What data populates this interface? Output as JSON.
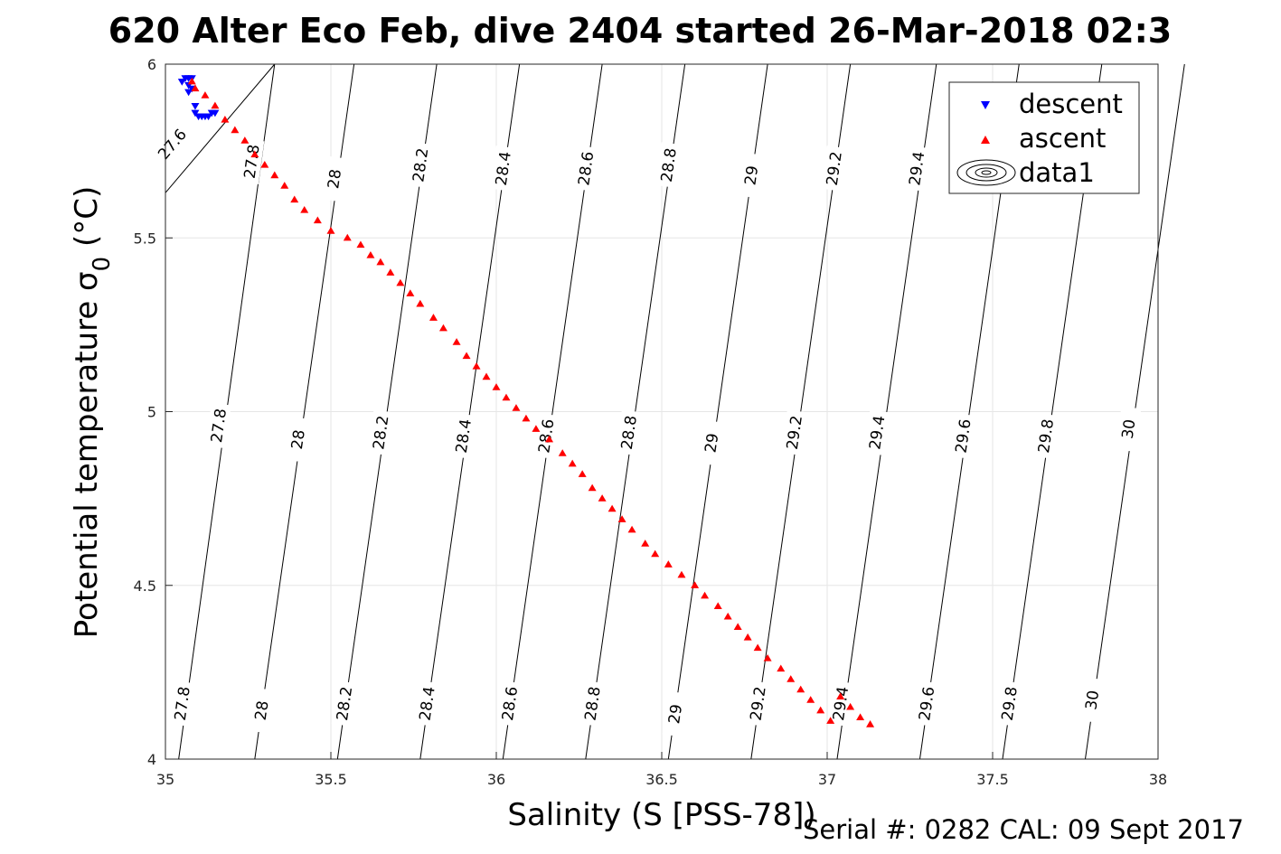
{
  "chart_data": {
    "type": "scatter",
    "title": "620 Alter Eco Feb, dive 2404 started 26-Mar-2018 02:3",
    "xlabel": "Salinity (S [PSS-78])",
    "ylabel_main": "Potential temperature ",
    "ylabel_symbol": "σ",
    "ylabel_sub": "0",
    "ylabel_unit": " (°C)",
    "footer": "Serial #: 0282  CAL: 09 Sept 2017",
    "xlim": [
      35,
      38
    ],
    "ylim": [
      4,
      6
    ],
    "x_ticks": [
      "35",
      "35.5",
      "36",
      "36.5",
      "37",
      "37.5",
      "38"
    ],
    "y_ticks": [
      "4",
      "4.5",
      "5",
      "5.5",
      "6"
    ],
    "grid": true,
    "legend_position": "top-right",
    "legend": [
      "descent",
      "ascent",
      "data1"
    ],
    "series": [
      {
        "name": "descent",
        "marker": "triangle-down",
        "color": "#0000ff",
        "points": [
          [
            35.05,
            5.95
          ],
          [
            35.06,
            5.96
          ],
          [
            35.07,
            5.96
          ],
          [
            35.08,
            5.96
          ],
          [
            35.07,
            5.94
          ],
          [
            35.08,
            5.93
          ],
          [
            35.07,
            5.92
          ],
          [
            35.09,
            5.88
          ],
          [
            35.09,
            5.86
          ],
          [
            35.1,
            5.85
          ],
          [
            35.11,
            5.85
          ],
          [
            35.12,
            5.85
          ],
          [
            35.13,
            5.85
          ],
          [
            35.14,
            5.86
          ],
          [
            35.15,
            5.86
          ]
        ]
      },
      {
        "name": "ascent",
        "marker": "triangle-up",
        "color": "#ff0000",
        "points": [
          [
            35.08,
            5.95
          ],
          [
            35.09,
            5.93
          ],
          [
            35.12,
            5.91
          ],
          [
            35.15,
            5.88
          ],
          [
            35.18,
            5.84
          ],
          [
            35.21,
            5.81
          ],
          [
            35.24,
            5.78
          ],
          [
            35.27,
            5.74
          ],
          [
            35.3,
            5.71
          ],
          [
            35.33,
            5.68
          ],
          [
            35.36,
            5.65
          ],
          [
            35.39,
            5.61
          ],
          [
            35.42,
            5.58
          ],
          [
            35.46,
            5.55
          ],
          [
            35.5,
            5.52
          ],
          [
            35.55,
            5.5
          ],
          [
            35.59,
            5.48
          ],
          [
            35.62,
            5.45
          ],
          [
            35.65,
            5.43
          ],
          [
            35.68,
            5.4
          ],
          [
            35.71,
            5.37
          ],
          [
            35.74,
            5.34
          ],
          [
            35.77,
            5.31
          ],
          [
            35.81,
            5.27
          ],
          [
            35.84,
            5.24
          ],
          [
            35.88,
            5.2
          ],
          [
            35.91,
            5.16
          ],
          [
            35.94,
            5.13
          ],
          [
            35.97,
            5.1
          ],
          [
            36.0,
            5.07
          ],
          [
            36.03,
            5.04
          ],
          [
            36.06,
            5.01
          ],
          [
            36.09,
            4.98
          ],
          [
            36.12,
            4.95
          ],
          [
            36.16,
            4.92
          ],
          [
            36.2,
            4.88
          ],
          [
            36.23,
            4.85
          ],
          [
            36.26,
            4.82
          ],
          [
            36.29,
            4.78
          ],
          [
            36.32,
            4.75
          ],
          [
            36.35,
            4.72
          ],
          [
            36.38,
            4.69
          ],
          [
            36.41,
            4.66
          ],
          [
            36.45,
            4.62
          ],
          [
            36.48,
            4.59
          ],
          [
            36.52,
            4.56
          ],
          [
            36.56,
            4.53
          ],
          [
            36.6,
            4.5
          ],
          [
            36.63,
            4.47
          ],
          [
            36.67,
            4.44
          ],
          [
            36.7,
            4.41
          ],
          [
            36.73,
            4.38
          ],
          [
            36.76,
            4.35
          ],
          [
            36.79,
            4.32
          ],
          [
            36.82,
            4.29
          ],
          [
            36.86,
            4.26
          ],
          [
            36.89,
            4.23
          ],
          [
            36.92,
            4.2
          ],
          [
            36.95,
            4.17
          ],
          [
            36.98,
            4.14
          ],
          [
            37.01,
            4.11
          ],
          [
            37.04,
            4.18
          ],
          [
            37.07,
            4.15
          ],
          [
            37.1,
            4.12
          ],
          [
            37.13,
            4.1
          ]
        ]
      }
    ],
    "contours": [
      {
        "label": "27.6",
        "s0": 35.0,
        "s1": 35.33,
        "y0": 5.63,
        "y1": 6.0,
        "labels_at": [
          [
            35.02,
            5.77
          ]
        ]
      },
      {
        "label": "27.8",
        "s0": 35.04,
        "s1": 35.33,
        "y0": 4.0,
        "y1": 6.0,
        "labels_at": [
          [
            35.05,
            4.16
          ],
          [
            35.16,
            4.96
          ],
          [
            35.26,
            5.72
          ]
        ]
      },
      {
        "label": "28",
        "s0": 35.27,
        "s1": 35.57,
        "y0": 4.0,
        "y1": 6.0,
        "labels_at": [
          [
            35.29,
            4.14
          ],
          [
            35.4,
            4.92
          ],
          [
            35.51,
            5.67
          ]
        ]
      },
      {
        "label": "28.2",
        "s0": 35.52,
        "s1": 35.82,
        "y0": 4.0,
        "y1": 6.0,
        "labels_at": [
          [
            35.54,
            4.16
          ],
          [
            35.65,
            4.94
          ],
          [
            35.77,
            5.71
          ]
        ]
      },
      {
        "label": "28.4",
        "s0": 35.77,
        "s1": 36.07,
        "y0": 4.0,
        "y1": 6.0,
        "labels_at": [
          [
            35.79,
            4.16
          ],
          [
            35.9,
            4.93
          ],
          [
            36.02,
            5.7
          ]
        ]
      },
      {
        "label": "28.6",
        "s0": 36.02,
        "s1": 36.32,
        "y0": 4.0,
        "y1": 6.0,
        "labels_at": [
          [
            36.04,
            4.16
          ],
          [
            36.15,
            4.93
          ],
          [
            36.27,
            5.7
          ]
        ]
      },
      {
        "label": "28.8",
        "s0": 36.27,
        "s1": 36.57,
        "y0": 4.0,
        "y1": 6.0,
        "labels_at": [
          [
            36.29,
            4.16
          ],
          [
            36.4,
            4.94
          ],
          [
            36.52,
            5.71
          ]
        ]
      },
      {
        "label": "29",
        "s0": 36.52,
        "s1": 36.82,
        "y0": 4.0,
        "y1": 6.0,
        "labels_at": [
          [
            36.54,
            4.13
          ],
          [
            36.65,
            4.91
          ],
          [
            36.77,
            5.68
          ]
        ]
      },
      {
        "label": "29.2",
        "s0": 36.77,
        "s1": 37.07,
        "y0": 4.0,
        "y1": 6.0,
        "labels_at": [
          [
            36.79,
            4.16
          ],
          [
            36.9,
            4.94
          ],
          [
            37.02,
            5.7
          ]
        ]
      },
      {
        "label": "29.4",
        "s0": 37.03,
        "s1": 37.33,
        "y0": 4.0,
        "y1": 6.0,
        "labels_at": [
          [
            37.04,
            4.16
          ],
          [
            37.15,
            4.94
          ],
          [
            37.27,
            5.7
          ]
        ]
      },
      {
        "label": "29.6",
        "s0": 37.28,
        "s1": 37.58,
        "y0": 4.0,
        "y1": 6.0,
        "labels_at": [
          [
            37.3,
            4.16
          ],
          [
            37.41,
            4.93
          ]
        ]
      },
      {
        "label": "29.8",
        "s0": 37.53,
        "s1": 37.83,
        "y0": 4.0,
        "y1": 6.0,
        "labels_at": [
          [
            37.55,
            4.16
          ],
          [
            37.66,
            4.93
          ]
        ]
      },
      {
        "label": "30",
        "s0": 37.78,
        "s1": 38.08,
        "y0": 4.0,
        "y1": 6.0,
        "labels_at": [
          [
            37.8,
            4.17
          ],
          [
            37.91,
            4.95
          ]
        ]
      }
    ]
  },
  "colors": {
    "axis": "#262626",
    "grid": "#e6e6e6",
    "contour": "#000000"
  }
}
